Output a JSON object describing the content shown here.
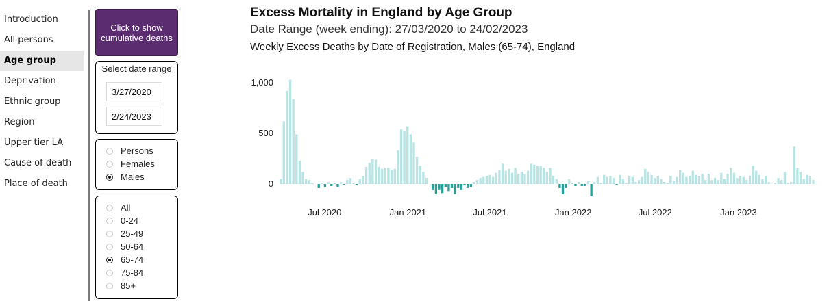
{
  "nav": {
    "items": [
      {
        "label": "Introduction",
        "active": false
      },
      {
        "label": "All persons",
        "active": false
      },
      {
        "label": "Age group",
        "active": true
      },
      {
        "label": "Deprivation",
        "active": false
      },
      {
        "label": "Ethnic group",
        "active": false
      },
      {
        "label": "Region",
        "active": false
      },
      {
        "label": "Upper tier LA",
        "active": false
      },
      {
        "label": "Cause of death",
        "active": false
      },
      {
        "label": "Place of death",
        "active": false
      }
    ]
  },
  "controls": {
    "cumulative_button_label": "Click to show cumulative deaths",
    "date_range": {
      "title": "Select date range",
      "start": "3/27/2020",
      "end": "2/24/2023"
    },
    "sex_options": [
      "Persons",
      "Females",
      "Males"
    ],
    "sex_selected": "Males",
    "age_options": [
      "All",
      "0-24",
      "25-49",
      "50-64",
      "65-74",
      "75-84",
      "85+"
    ],
    "age_selected": "65-74"
  },
  "colors": {
    "accent_button": "#5b2c6f",
    "positive_bar": "#b8e4e4",
    "negative_bar": "#2aa198"
  },
  "chart_data": {
    "type": "bar",
    "title": "Excess Mortality in England by Age Group",
    "subtitle": "Date Range (week ending): 27/03/2020 to 24/02/2023",
    "caption": "Weekly Excess Deaths by Date of Registration, Males (65-74), England",
    "x_type": "weekly dates",
    "x_start": "2020-03-27",
    "x_ticks": [
      "Jul 2020",
      "Jan 2021",
      "Jul 2021",
      "Jan 2022",
      "Jul 2022",
      "Jan 2023"
    ],
    "y_ticks": [
      "1,000",
      "500",
      "0"
    ],
    "ylim": [
      -120,
      1050
    ],
    "grid": false,
    "series": [
      {
        "values": [
          50,
          620,
          920,
          1030,
          840,
          490,
          230,
          120,
          50,
          40,
          10,
          0,
          -40,
          10,
          -30,
          20,
          -20,
          10,
          -30,
          20,
          -10,
          40,
          60,
          10,
          -10,
          50,
          80,
          170,
          210,
          250,
          240,
          170,
          150,
          160,
          160,
          140,
          150,
          330,
          540,
          520,
          570,
          490,
          410,
          270,
          180,
          120,
          60,
          0,
          -60,
          -100,
          -60,
          -90,
          -30,
          -70,
          -40,
          -100,
          -40,
          -60,
          -10,
          -40,
          -30,
          20,
          40,
          60,
          70,
          80,
          90,
          70,
          110,
          140,
          200,
          130,
          150,
          110,
          160,
          100,
          120,
          100,
          130,
          200,
          190,
          180,
          180,
          160,
          120,
          160,
          80,
          50,
          -40,
          -100,
          -40,
          50,
          10,
          -20,
          20,
          -20,
          -20,
          30,
          -120,
          20,
          70,
          10,
          90,
          70,
          80,
          60,
          -10,
          90,
          50,
          10,
          80,
          70,
          20,
          40,
          70,
          150,
          120,
          90,
          60,
          80,
          50,
          20,
          10,
          80,
          30,
          70,
          140,
          110,
          70,
          80,
          130,
          90,
          80,
          100,
          40,
          100,
          40,
          60,
          40,
          110,
          50,
          100,
          160,
          110,
          60,
          80,
          70,
          40,
          80,
          180,
          130,
          90,
          50,
          80,
          20,
          0,
          10,
          60,
          40,
          120,
          10,
          20,
          370,
          160,
          120,
          50,
          90,
          80,
          40
        ]
      }
    ]
  }
}
